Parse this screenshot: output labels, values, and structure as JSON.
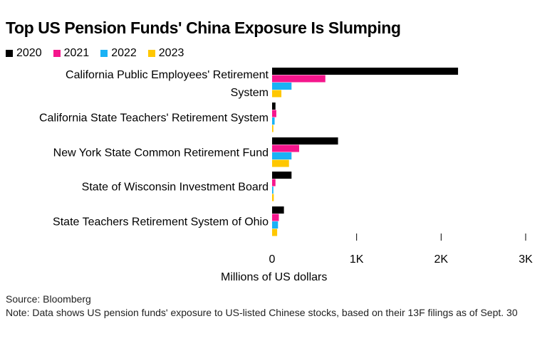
{
  "chart_data": {
    "type": "bar",
    "orientation": "horizontal",
    "title": "Top US Pension Funds' China Exposure Is Slumping",
    "xlabel": "Millions of US dollars",
    "xlim": [
      0,
      3000
    ],
    "x_ticks": [
      0,
      1000,
      2000,
      3000
    ],
    "x_tick_labels": [
      "0",
      "1K",
      "2K",
      "3K"
    ],
    "categories": [
      [
        "California Public Employees' Retirement",
        "System"
      ],
      [
        "California State Teachers' Retirement System"
      ],
      [
        "New York State Common Retirement Fund"
      ],
      [
        "State of Wisconsin Investment Board"
      ],
      [
        "State Teachers Retirement System of Ohio"
      ]
    ],
    "series": [
      {
        "name": "2020",
        "color": "#000000",
        "values": [
          2200,
          40,
          780,
          230,
          140
        ]
      },
      {
        "name": "2021",
        "color": "#f5168c",
        "values": [
          630,
          50,
          320,
          40,
          80
        ]
      },
      {
        "name": "2022",
        "color": "#1ab2f5",
        "values": [
          230,
          30,
          230,
          15,
          70
        ]
      },
      {
        "name": "2023",
        "color": "#ffc700",
        "values": [
          110,
          15,
          200,
          20,
          60
        ]
      }
    ],
    "legend_position": "top-left",
    "grid": false
  },
  "source": "Source: Bloomberg",
  "note": "Note: Data shows US pension funds' exposure to US-listed Chinese stocks, based on their 13F filings as of Sept. 30"
}
